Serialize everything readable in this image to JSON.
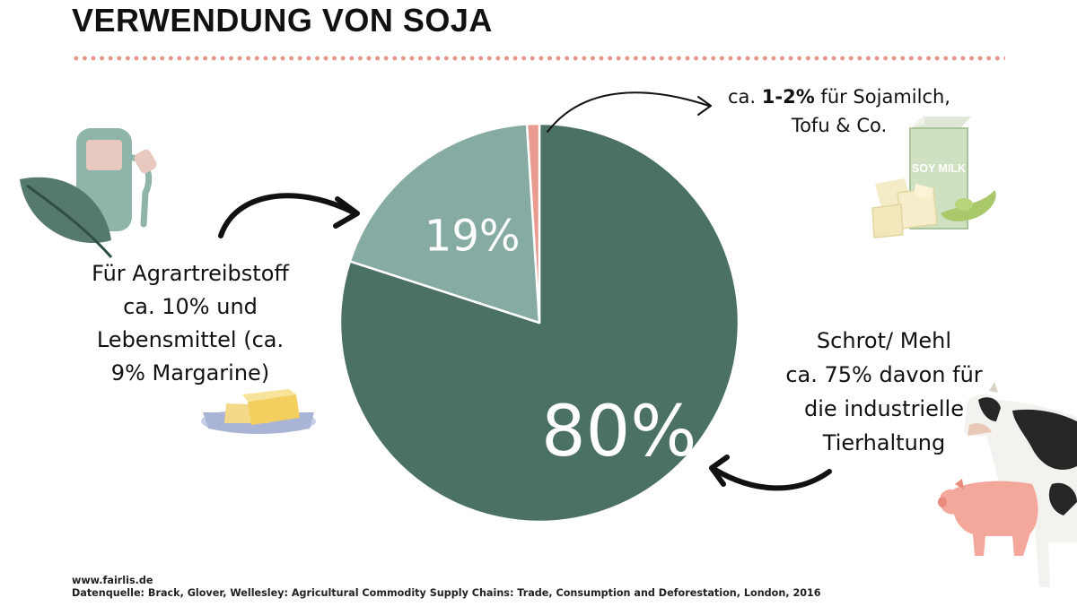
{
  "title": "VERWENDUNG VON SOJA",
  "annotations": {
    "biofuel": [
      "Für Agrartreibstoff",
      "ca. 10% und",
      "Lebensmittel (ca.",
      "9% Margarine)"
    ],
    "meal": [
      "Schrot/ Mehl",
      "ca. 75% davon für",
      "die industrielle",
      "Tierhaltung"
    ],
    "soymilk_prefix": "ca. ",
    "soymilk_bold": "1-2%",
    "soymilk_rest": " für Sojamilch,",
    "soymilk_line2": "Tofu & Co.",
    "milk_carton_text": "SOY MILK"
  },
  "footer": {
    "website": "www.fairlis.de",
    "source": "Datenquelle: Brack, Glover, Wellesley: Agricultural Commodity Supply Chains: Trade, Consumption and Deforestation, London, 2016"
  },
  "colors": {
    "schrot": "#4b7166",
    "oil": "#86aba3",
    "food": "#e99b8f",
    "accent_dots": "#e8948a"
  },
  "chart_data": {
    "type": "pie",
    "title": "VERWENDUNG VON SOJA",
    "slices": [
      {
        "name": "Schrot/ Mehl",
        "value": 80,
        "label": "80%",
        "color": "#4b7166"
      },
      {
        "name": "Agrartreibstoff und Lebensmittel",
        "value": 19,
        "label": "19%",
        "color": "#86aba3"
      },
      {
        "name": "Sojamilch, Tofu & Co.",
        "value": 1,
        "label": "",
        "color": "#e99b8f"
      }
    ],
    "start_angle_deg": 0,
    "direction": "clockwise"
  }
}
